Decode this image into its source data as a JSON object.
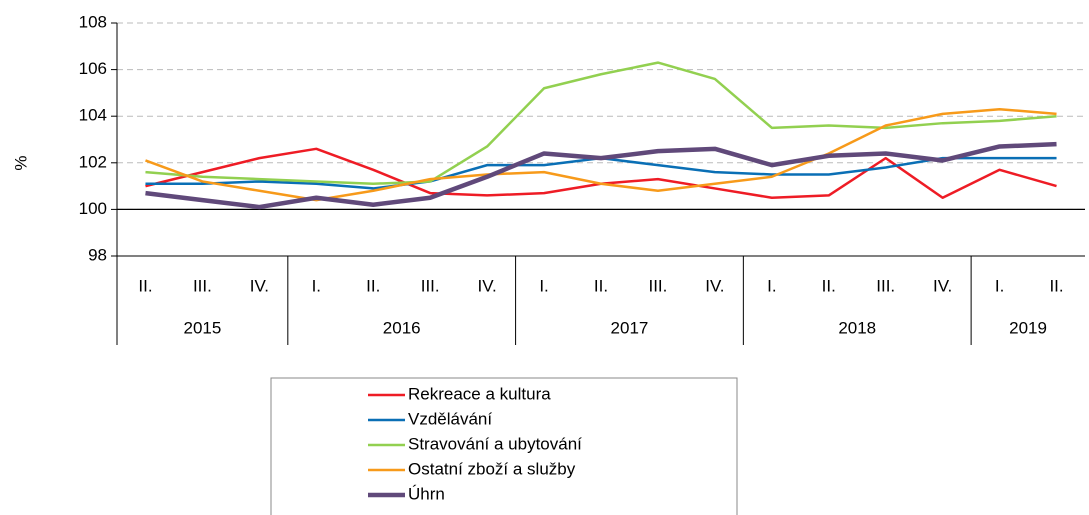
{
  "chart_data": {
    "type": "line",
    "y_label": "%",
    "categories": [
      "II.",
      "III.",
      "IV.",
      "I.",
      "II.",
      "III.",
      "IV.",
      "I.",
      "II.",
      "III.",
      "IV.",
      "I.",
      "II.",
      "III.",
      "IV.",
      "I.",
      "II."
    ],
    "category_groups": [
      {
        "label": "2015",
        "span": 3
      },
      {
        "label": "2016",
        "span": 4
      },
      {
        "label": "2017",
        "span": 4
      },
      {
        "label": "2018",
        "span": 4
      },
      {
        "label": "2019",
        "span": 2
      }
    ],
    "series": [
      {
        "name": "Rekreace a kultura",
        "color": "#ee1c25",
        "width": 2.5,
        "values": [
          101.0,
          101.6,
          102.2,
          102.6,
          101.7,
          100.7,
          100.6,
          100.7,
          101.1,
          101.3,
          100.9,
          100.5,
          100.6,
          102.2,
          100.5,
          101.7,
          101.0
        ]
      },
      {
        "name": "Vzdělávání",
        "color": "#0a6fb5",
        "width": 2.5,
        "values": [
          101.1,
          101.1,
          101.2,
          101.1,
          100.9,
          101.2,
          101.9,
          101.9,
          102.2,
          101.9,
          101.6,
          101.5,
          101.5,
          101.8,
          102.2,
          102.2,
          102.2
        ]
      },
      {
        "name": "Stravování a ubytování",
        "color": "#92d050",
        "width": 2.5,
        "values": [
          101.6,
          101.4,
          101.3,
          101.2,
          101.1,
          101.2,
          102.7,
          105.2,
          105.8,
          106.3,
          105.6,
          103.5,
          103.6,
          103.5,
          103.7,
          103.8,
          104.0
        ]
      },
      {
        "name": "Ostatní zboží a služby",
        "color": "#f79a1a",
        "width": 2.5,
        "values": [
          102.1,
          101.2,
          100.8,
          100.4,
          100.8,
          101.3,
          101.5,
          101.6,
          101.1,
          100.8,
          101.1,
          101.4,
          102.4,
          103.6,
          104.1,
          104.3,
          104.1
        ]
      },
      {
        "name": "Úhrn",
        "color": "#60497a",
        "width": 4.5,
        "values": [
          100.7,
          100.4,
          100.1,
          100.5,
          100.2,
          100.5,
          101.4,
          102.4,
          102.2,
          102.5,
          102.6,
          101.9,
          102.3,
          102.4,
          102.1,
          102.7,
          102.8
        ]
      }
    ],
    "ylim": [
      98,
      108
    ],
    "yticks": [
      98,
      100,
      102,
      104,
      106,
      108
    ],
    "grid": true,
    "x_axis_at": 100
  }
}
